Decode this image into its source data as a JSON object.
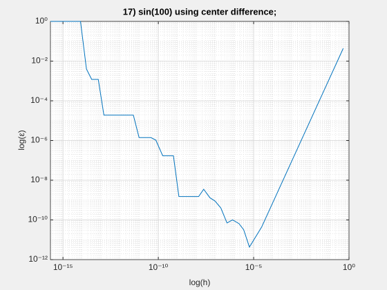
{
  "chart_data": {
    "type": "line",
    "title": "17) sin(100) using center difference;",
    "xlabel": "log(h)",
    "ylabel": "log(ε)",
    "x": [
      2.2e-16,
      8.3e-15,
      1.7e-14,
      3.2e-14,
      7.1e-14,
      1.4e-13,
      4.9e-12,
      9.8e-12,
      4.1e-11,
      7.4e-11,
      1.7e-10,
      6.2e-10,
      1.2e-09,
      1.3e-08,
      2.4e-08,
      5.1e-08,
      9.3e-08,
      1.9e-07,
      4e-07,
      7.8e-07,
      1.7e-06,
      3e-06,
      6e-06,
      2.6e-05,
      0.5
    ],
    "series": [
      {
        "color": "#0072bd",
        "values": [
          1,
          1,
          0.004,
          0.0012,
          0.0012,
          1.9e-05,
          1.9e-05,
          1.4e-06,
          1.4e-06,
          1.05e-06,
          1.7e-07,
          1.7e-07,
          1.5e-09,
          1.5e-09,
          3.5e-09,
          1.3e-09,
          9e-10,
          4e-10,
          7e-11,
          1e-10,
          6.5e-11,
          3.2e-11,
          4.3e-12,
          4.3e-11,
          0.044
        ]
      }
    ],
    "xscale": "log",
    "yscale": "log",
    "xlim": [
      2.2e-16,
      1
    ],
    "ylim": [
      1e-12,
      1
    ],
    "xticks": [
      {
        "value": 1e-15,
        "label": "10⁻¹⁵"
      },
      {
        "value": 1e-10,
        "label": "10⁻¹⁰"
      },
      {
        "value": 1e-05,
        "label": "10⁻⁵"
      },
      {
        "value": 1,
        "label": "10⁰"
      }
    ],
    "yticks": [
      {
        "value": 1e-12,
        "label": "10⁻¹²"
      },
      {
        "value": 1e-10,
        "label": "10⁻¹⁰"
      },
      {
        "value": 1e-08,
        "label": "10⁻⁸"
      },
      {
        "value": 1e-06,
        "label": "10⁻⁶"
      },
      {
        "value": 0.0001,
        "label": "10⁻⁴"
      },
      {
        "value": 0.01,
        "label": "10⁻²"
      },
      {
        "value": 1,
        "label": "10⁰"
      }
    ],
    "grid": true,
    "minor_grid": true
  }
}
